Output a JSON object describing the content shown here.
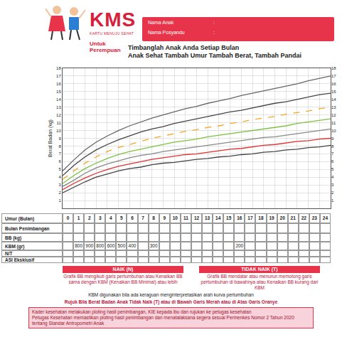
{
  "header": {
    "logo": "KMS",
    "logo_subtitle": "KARTU MENUJU SEHAT",
    "fields": [
      "Nama Anak",
      "Nama Posyandu"
    ],
    "separator": ":",
    "target": "Untuk Perempuan",
    "title": [
      "Timbanglah Anak Anda Setiap Bulan",
      "Anak Sehat Tambah Umur Tambah Berat, Tambah Pandai"
    ]
  },
  "chart_data": {
    "type": "line",
    "y_label": "Berat Badan (kg)",
    "x": [
      0,
      1,
      2,
      3,
      4,
      5,
      6,
      7,
      8,
      9,
      10,
      11,
      12,
      13,
      14,
      15,
      16,
      17,
      18,
      19,
      20,
      21,
      22,
      23,
      24
    ],
    "xlim": [
      0,
      24
    ],
    "xticks": [
      0,
      1,
      2,
      3,
      4,
      5,
      6,
      7,
      8,
      9,
      10,
      11,
      12,
      13,
      14,
      15,
      16,
      17,
      18,
      19,
      20,
      21,
      22,
      23,
      24
    ],
    "ylim": [
      0,
      18
    ],
    "yticks": [
      1,
      2,
      3,
      4,
      5,
      6,
      7,
      8,
      9,
      10,
      11,
      12,
      13,
      14,
      15,
      16,
      17,
      18
    ],
    "grid": true,
    "tick_labels": "y",
    "series": [
      {
        "color": "#666666",
        "line_style": "solid",
        "values": [
          4.8,
          6.2,
          7.5,
          8.5,
          9.3,
          10.0,
          10.6,
          11.1,
          11.6,
          12.0,
          12.4,
          12.8,
          13.1,
          13.5,
          13.8,
          14.1,
          14.5,
          14.8,
          15.1,
          15.4,
          15.7,
          16.0,
          16.4,
          16.7,
          17.0
        ]
      },
      {
        "color": "#444444",
        "line_style": "solid",
        "values": [
          4.2,
          5.5,
          6.6,
          7.5,
          8.2,
          8.8,
          9.3,
          9.8,
          10.2,
          10.5,
          10.9,
          11.2,
          11.5,
          11.8,
          12.1,
          12.4,
          12.6,
          12.9,
          13.2,
          13.5,
          13.7,
          14.0,
          14.3,
          14.6,
          14.8
        ]
      },
      {
        "color": "#f5a623",
        "line_style": "dash",
        "values": [
          3.7,
          4.8,
          5.8,
          6.6,
          7.3,
          7.8,
          8.2,
          8.6,
          9.0,
          9.3,
          9.6,
          9.9,
          10.1,
          10.4,
          10.6,
          10.9,
          11.1,
          11.4,
          11.6,
          11.8,
          12.1,
          12.3,
          12.5,
          12.8,
          13.0
        ]
      },
      {
        "color": "#7cc242",
        "line_style": "solid",
        "values": [
          3.2,
          4.2,
          5.1,
          5.8,
          6.4,
          6.9,
          7.3,
          7.6,
          7.9,
          8.2,
          8.5,
          8.7,
          8.9,
          9.2,
          9.4,
          9.6,
          9.8,
          10.0,
          10.2,
          10.4,
          10.6,
          10.9,
          11.1,
          11.3,
          11.5
        ]
      },
      {
        "color": "#888888",
        "line_style": "solid",
        "values": [
          2.8,
          3.6,
          4.5,
          5.2,
          5.7,
          6.1,
          6.5,
          6.8,
          7.0,
          7.3,
          7.5,
          7.7,
          7.9,
          8.1,
          8.3,
          8.5,
          8.7,
          8.9,
          9.1,
          9.2,
          9.4,
          9.6,
          9.8,
          10.0,
          10.2
        ]
      },
      {
        "color": "#e03030",
        "line_style": "solid",
        "values": [
          2.4,
          3.2,
          3.9,
          4.5,
          5.0,
          5.4,
          5.7,
          6.0,
          6.3,
          6.5,
          6.7,
          6.9,
          7.0,
          7.2,
          7.4,
          7.6,
          7.7,
          7.9,
          8.1,
          8.2,
          8.4,
          8.6,
          8.7,
          8.9,
          9.0
        ]
      },
      {
        "color": "#444444",
        "line_style": "solid",
        "values": [
          2.0,
          2.7,
          3.4,
          4.0,
          4.4,
          4.8,
          5.1,
          5.3,
          5.6,
          5.8,
          5.9,
          6.1,
          6.3,
          6.4,
          6.6,
          6.7,
          6.9,
          7.0,
          7.2,
          7.3,
          7.5,
          7.6,
          7.8,
          7.9,
          8.1
        ]
      }
    ]
  },
  "table": {
    "age_label": "Umur (Bulan)",
    "rows": [
      {
        "label": "Bulan Penimbangan"
      },
      {
        "label": "BB (kg)"
      },
      {
        "label": "KBM (gr)",
        "values": [
          null,
          800,
          900,
          800,
          600,
          500,
          400,
          null,
          300,
          null,
          null,
          null,
          null,
          null,
          null,
          null,
          200,
          null,
          null,
          null,
          null,
          null,
          null,
          null,
          null
        ]
      },
      {
        "label": "N/T"
      },
      {
        "label": "ASI Eksklusif"
      }
    ]
  },
  "legend_boxes": [
    {
      "title": "NAIK (N)",
      "text": "Grafik BB mengikuti garis pertumbuhan atau Kenaikan BB sama dengan KBM (Kenaikan BB Minimal) atau lebih"
    },
    {
      "title": "TIDAK NAIK (T)",
      "text": "Grafik BB mendatar atau menurun memotong garis pertumbuhan di bawahnya atau Kenaikan BB kurang dari KBM"
    }
  ],
  "note": "KBM digunakan bila ada keraguan menginterpretasikan arah kurva pertumbuhan",
  "referral": "Rujuk Bila Berat Badan Anak Tidak Naik (T) atau di Bawah Garis Merah atau di Atas Garis Oranye",
  "instructions": [
    "Kader kesehatan melakukan ploting hasil penimbangan, KIE kepada ibu dan rujukan ke petugas kesehatan",
    "Petugas Kesehatan memastikan ploting hasil penimbangan dan menatalaksana segera sesuai Permenkes Nomor 2 Tahun 2020 tentang Standar Antropometri Anak"
  ]
}
